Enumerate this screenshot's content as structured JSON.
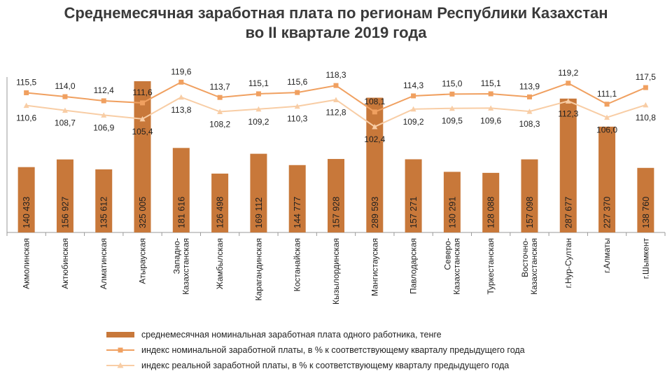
{
  "title": {
    "line1": "Среднемесячная заработная  плата по регионам Республики Казахстан",
    "line2": "во II квартале  2019 года"
  },
  "colors": {
    "bar": "#C8783A",
    "nominal": "#F0A060",
    "real": "#F8CDA5",
    "axis": "#9a9a9a"
  },
  "chart_data": {
    "type": "bar",
    "categories": [
      "Акмолинская",
      "Актюбинская",
      "Алматинская",
      "Атырауская",
      "Западно-Казахстанская",
      "Жамбылская",
      "Карагандинская",
      "Костанайская",
      "Кызылординская",
      "Мангистауская",
      "Павлодарская",
      "Северо-Казахстанская",
      "Туркестанская",
      "Восточно-Казахстанская",
      "г.Нур-Султан",
      "г.Алматы",
      "г.Шымкент"
    ],
    "category_lines": [
      [
        "Акмолинская"
      ],
      [
        "Актюбинская"
      ],
      [
        "Алматинская"
      ],
      [
        "Атырауская"
      ],
      [
        "Западно-",
        "Казахстанская"
      ],
      [
        "Жамбылская"
      ],
      [
        "Карагандинская"
      ],
      [
        "Костанайская"
      ],
      [
        "Кызылординская"
      ],
      [
        "Мангистауская"
      ],
      [
        "Павлодарская"
      ],
      [
        "Северо-",
        "Казахстанская"
      ],
      [
        "Туркестанская"
      ],
      [
        "Восточно-",
        "Казахстанская"
      ],
      [
        "г.Нур-Султан"
      ],
      [
        "г.Алматы"
      ],
      [
        "г.Шымкент"
      ]
    ],
    "series": [
      {
        "name": "среднемесячная номинальная  заработная плата одного работника, тенге",
        "type": "bar",
        "values": [
          140433,
          156927,
          135612,
          325005,
          181616,
          126498,
          169112,
          144777,
          157928,
          289593,
          157271,
          130291,
          128088,
          157098,
          287677,
          227370,
          138760
        ],
        "labels": [
          "140 433",
          "156 927",
          "135 612",
          "325 005",
          "181 616",
          "126 498",
          "169 112",
          "144 777",
          "157 928",
          "289 593",
          "157 271",
          "130 291",
          "128 088",
          "157 098",
          "287 677",
          "227 370",
          "138 760"
        ]
      },
      {
        "name": "индекс номинальной заработной платы, в % к соответствующему кварталу предыдущего года",
        "type": "line",
        "values": [
          115.5,
          114.0,
          112.4,
          111.6,
          119.6,
          113.7,
          115.1,
          115.6,
          118.3,
          108.1,
          114.3,
          115.0,
          115.1,
          113.9,
          119.2,
          111.1,
          117.5
        ],
        "labels": [
          "115,5",
          "114,0",
          "112,4",
          "111,6",
          "119,6",
          "113,7",
          "115,1",
          "115,6",
          "118,3",
          "108,1",
          "114,3",
          "115,0",
          "115,1",
          "113,9",
          "119,2",
          "111,1",
          "117,5"
        ]
      },
      {
        "name": "индекс реальной заработной платы, в % к соответствующему кварталу предыдущего года",
        "type": "line",
        "values": [
          110.6,
          108.7,
          106.9,
          105.4,
          113.8,
          108.2,
          109.2,
          110.3,
          112.8,
          102.4,
          109.2,
          109.5,
          109.6,
          108.3,
          112.3,
          106.0,
          110.8
        ],
        "labels": [
          "110,6",
          "108,7",
          "106,9",
          "105,4",
          "113,8",
          "108,2",
          "109,2",
          "110,3",
          "112,8",
          "102,4",
          "109,2",
          "109,5",
          "109,6",
          "108,3",
          "112,3",
          "106,0",
          "110,8"
        ]
      }
    ]
  }
}
